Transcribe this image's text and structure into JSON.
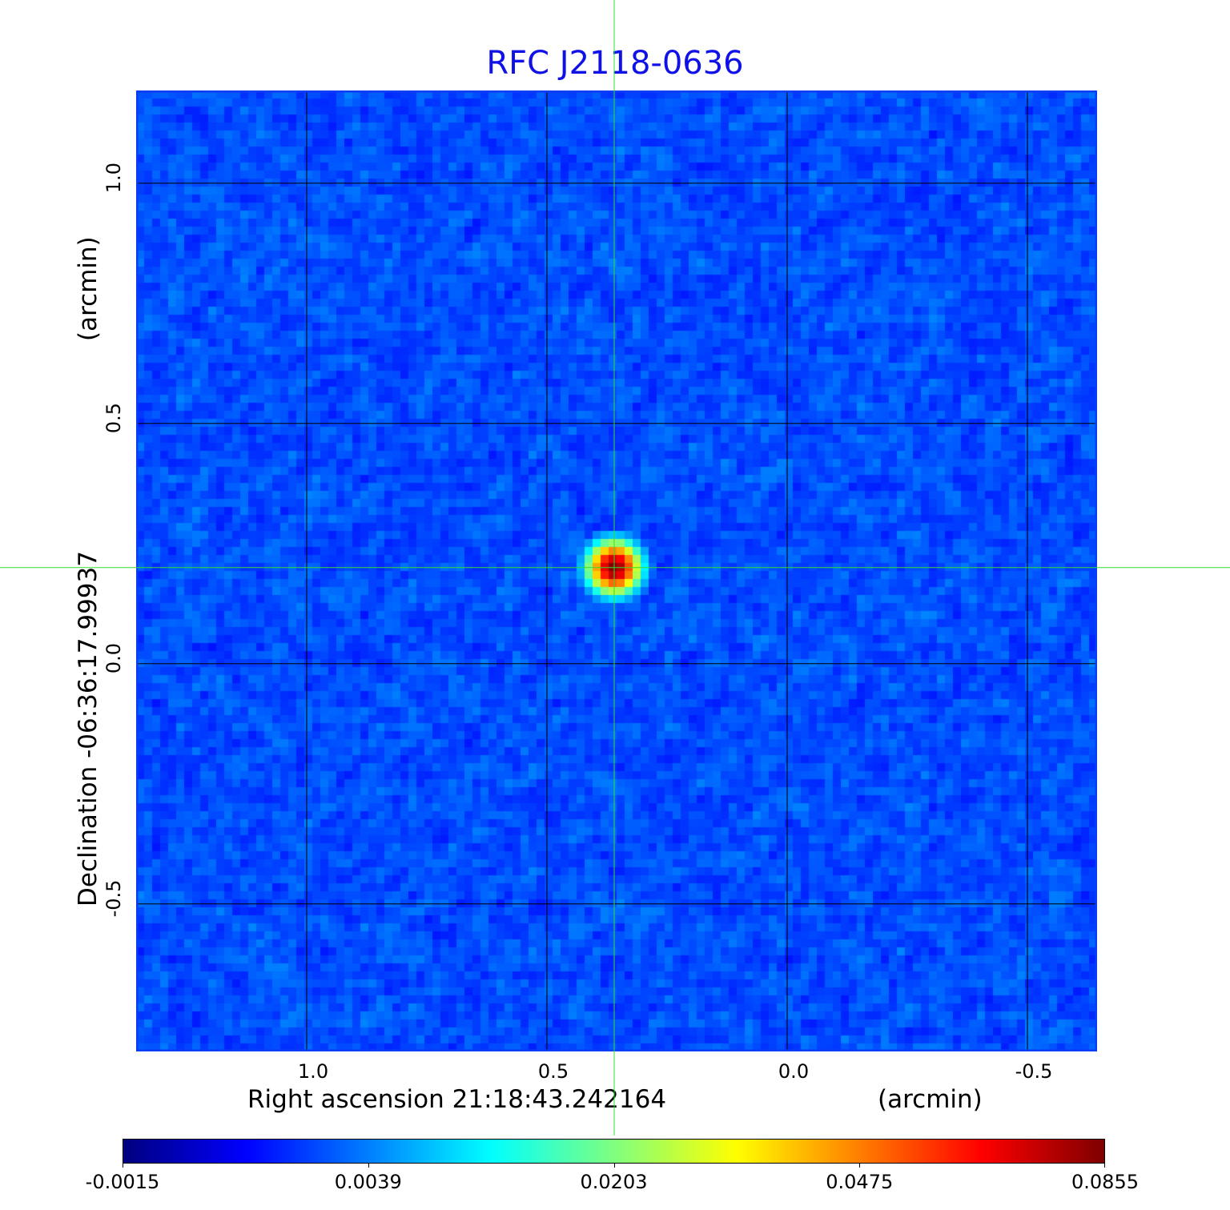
{
  "chart_data": {
    "type": "heatmap",
    "title": "RFC J2118-0636",
    "xlabel": "Right ascension  21:18:43.242164",
    "xunit": "(arcmin)",
    "ylabel": "Declination  -06:36:17.99937",
    "yunit": "(arcmin)",
    "xlim": [
      1.355,
      -0.645
    ],
    "ylim": [
      -0.807,
      1.193
    ],
    "x_ticks": [
      1.0,
      0.5,
      0.0,
      -0.5
    ],
    "x_tick_labels": [
      "1.0",
      "0.5",
      "0.0",
      "-0.5"
    ],
    "y_ticks": [
      1.0,
      0.5,
      0.0,
      -0.5
    ],
    "y_tick_labels": [
      "1.0",
      "0.5",
      "0.0",
      "-0.5"
    ],
    "grid": true,
    "colormap": "jet",
    "colorbar": {
      "placement": "bottom",
      "tick_labels": [
        "-0.0015",
        "0.0039",
        "0.0203",
        "0.0475",
        "0.0855"
      ],
      "min": -0.0015,
      "max": 0.0855
    },
    "source": {
      "ra_offset_arcmin": 0.36,
      "dec_offset_arcmin": 0.2,
      "peak": 0.0855
    },
    "background_level": 0.0017,
    "crosshair": {
      "ra_offset_arcmin": 0.36,
      "dec_offset_arcmin": 0.2,
      "color": "#33dd33"
    },
    "grid_color": "#000000",
    "title_color": "#1010e8"
  }
}
